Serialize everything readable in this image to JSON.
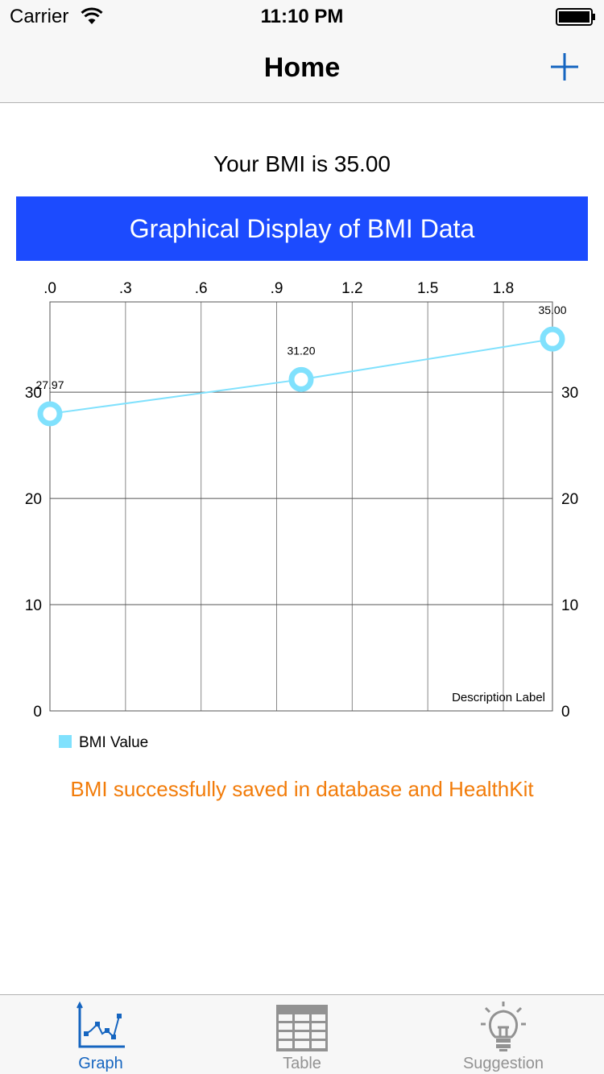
{
  "status_bar": {
    "carrier": "Carrier",
    "time": "11:10 PM"
  },
  "nav": {
    "title": "Home"
  },
  "bmi_text": "Your BMI is 35.00",
  "chart_header": "Graphical Display of BMI Data",
  "chart_data": {
    "type": "line",
    "x": [
      0,
      1,
      2
    ],
    "x_tick_labels": [
      ".0",
      ".3",
      ".6",
      ".9",
      "1.2",
      "1.5",
      "1.8"
    ],
    "y_tick_labels": [
      "0",
      "10",
      "20",
      "30"
    ],
    "series": [
      {
        "name": "BMI Value",
        "values": [
          27.97,
          31.2,
          35.0
        ],
        "value_labels": [
          "27.97",
          "31.20",
          "35.00"
        ],
        "color": "#80e1fd"
      }
    ],
    "xlim": [
      0,
      2
    ],
    "ylim": [
      0,
      38.5
    ],
    "grid": true,
    "description": "Description Label",
    "legend_position": "bottom-left"
  },
  "save_message": "BMI successfully saved in database and HealthKit",
  "tabs": [
    {
      "label": "Graph",
      "icon": "graph-icon",
      "active": true
    },
    {
      "label": "Table",
      "icon": "table-icon",
      "active": false
    },
    {
      "label": "Suggestion",
      "icon": "lightbulb-icon",
      "active": false
    }
  ],
  "colors": {
    "accent": "#1565c0",
    "header_bg": "#1c4bfe",
    "series": "#80e1fd",
    "message": "#f27c0a"
  }
}
